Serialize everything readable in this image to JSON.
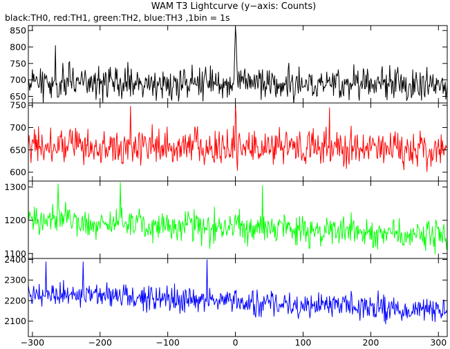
{
  "title": "WAM T3 Lightcurve (y−axis: Counts)",
  "subtitle": "black:TH0, red:TH1, green:TH2, blue:TH3 ,1bin = 1s",
  "chart_data": {
    "type": "line",
    "title": "WAM T3 Lightcurve (y−axis: Counts)",
    "subtitle": "black:TH0, red:TH1, green:TH2, blue:TH3 ,1bin = 1s",
    "xlabel": "",
    "xlim": [
      -306,
      313
    ],
    "x_ticks": [
      -300,
      -200,
      -100,
      0,
      100,
      200,
      300
    ],
    "x_tick_labels": [
      "−300",
      "−200",
      "−100",
      "0",
      "100",
      "200",
      "300"
    ],
    "bin_seconds": 1,
    "grid": false,
    "panels": [
      {
        "name": "TH0",
        "color": "#000000",
        "ylim": [
          630,
          865
        ],
        "y_ticks": [
          650,
          700,
          750,
          800,
          850
        ],
        "mean": 692,
        "amplitude": 75,
        "trend_end": -6,
        "features": [
          {
            "x": -266,
            "y": 805
          },
          {
            "x": 0,
            "y": 862
          },
          {
            "x": 1,
            "y": 830
          },
          {
            "x": -1,
            "y": 790
          },
          {
            "x": 2,
            "y": 760
          }
        ]
      },
      {
        "name": "TH1",
        "color": "#ff0000",
        "ylim": [
          580,
          755
        ],
        "y_ticks": [
          600,
          650,
          700,
          750
        ],
        "mean": 660,
        "amplitude": 62,
        "trend_end": -8,
        "features": [
          {
            "x": 0,
            "y": 752
          },
          {
            "x": 1,
            "y": 725
          },
          {
            "x": -155,
            "y": 748
          },
          {
            "x": 139,
            "y": 745
          }
        ]
      },
      {
        "name": "TH2",
        "color": "#00ff00",
        "ylim": [
          1085,
          1318
        ],
        "y_ticks": [
          1100,
          1200,
          1300
        ],
        "mean": 1205,
        "amplitude": 72,
        "trend_end": -55,
        "features": [
          {
            "x": -170,
            "y": 1315
          },
          {
            "x": -262,
            "y": 1310
          },
          {
            "x": 40,
            "y": 1305
          }
        ]
      },
      {
        "name": "TH3",
        "color": "#0000ff",
        "ylim": [
          2025,
          2405
        ],
        "y_ticks": [
          2100,
          2200,
          2300,
          2400
        ],
        "mean": 2240,
        "amplitude": 95,
        "trend_end": -90,
        "features": [
          {
            "x": -42,
            "y": 2400
          },
          {
            "x": -280,
            "y": 2390
          },
          {
            "x": -225,
            "y": 2390
          }
        ]
      }
    ]
  }
}
